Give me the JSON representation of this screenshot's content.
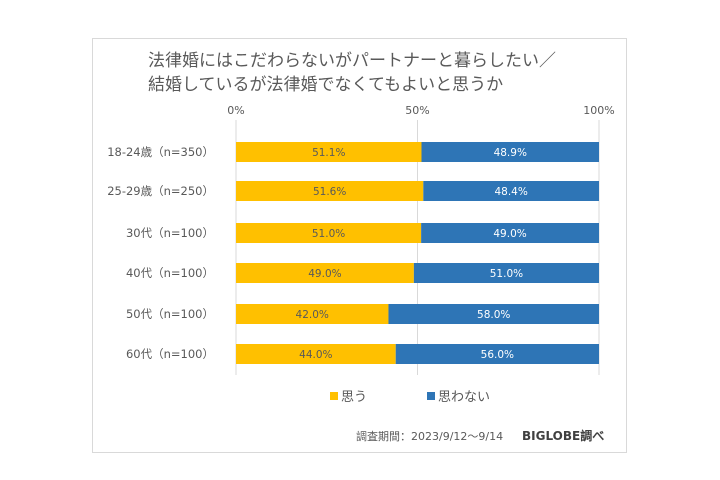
{
  "chart_data": {
    "type": "bar",
    "orientation": "horizontal",
    "stacked": true,
    "title": [
      "法律婚にはこだわらないがパートナーと暮らしたい／",
      "結婚しているが法律婚でなくてもよいと思うか"
    ],
    "categories": [
      "18-24歳（n=350）",
      "25-29歳（n=250）",
      "30代（n=100）",
      "40代（n=100）",
      "50代（n=100）",
      "60代（n=100）"
    ],
    "series": [
      {
        "name": "思う",
        "color": "#FFC000",
        "values": [
          51.1,
          51.6,
          51.0,
          49.0,
          42.0,
          44.0
        ]
      },
      {
        "name": "思わない",
        "color": "#2E75B6",
        "values": [
          48.9,
          48.4,
          49.0,
          51.0,
          58.0,
          56.0
        ]
      }
    ],
    "xlim": [
      0,
      100
    ],
    "xticks": [
      "0%",
      "50%",
      "100%"
    ],
    "axis_position": "top",
    "grid": true,
    "legend_position": "bottom"
  },
  "footer": {
    "period": "調査期間：2023/9/12～9/14",
    "source": "BIGLOBE調べ"
  }
}
